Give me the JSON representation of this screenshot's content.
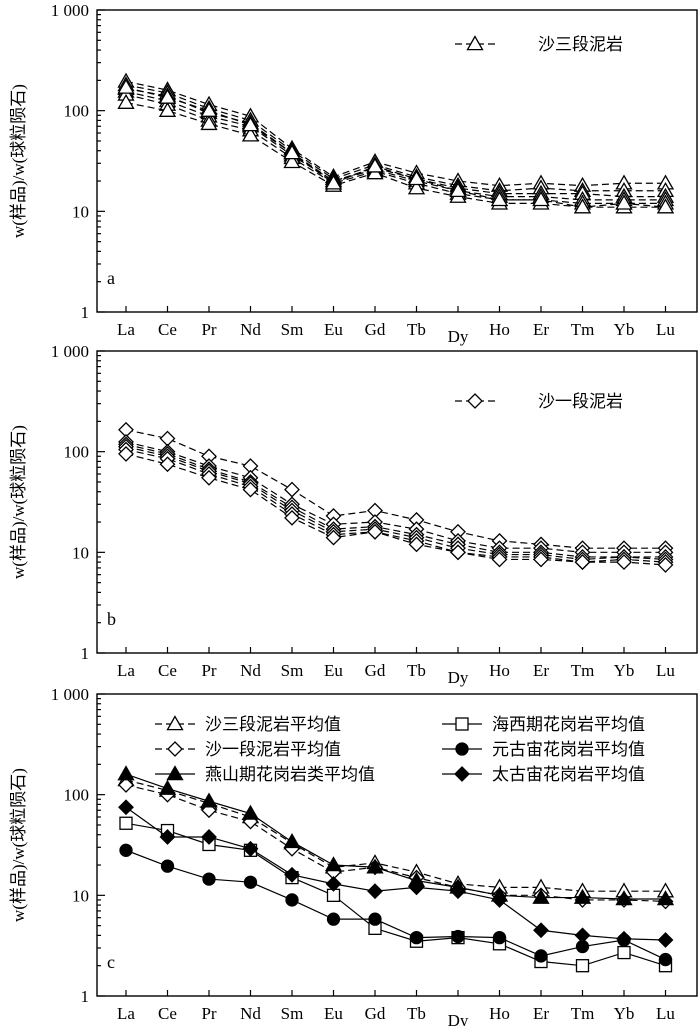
{
  "chart_data": [
    {
      "type": "line",
      "panel_label": "a",
      "ylabel": "w(样品)/w(球粒陨石)",
      "yscale": "log",
      "ylim": [
        1,
        1000
      ],
      "yticks": [
        1,
        10,
        100,
        1000
      ],
      "ytick_labels": [
        "1",
        "10",
        "100",
        "1 000"
      ],
      "categories": [
        "La",
        "Ce",
        "Pr",
        "Nd",
        "Sm",
        "Eu",
        "Gd",
        "Tb",
        "Dy",
        "Ho",
        "Er",
        "Tm",
        "Yb",
        "Lu"
      ],
      "legend": [
        {
          "label": "沙三段泥岩",
          "marker": "triangle-open",
          "line": "dashed"
        }
      ],
      "series": [
        {
          "name": "沙三段泥岩-1",
          "marker": "triangle-open",
          "line": "dashed",
          "values": [
            195,
            160,
            115,
            88,
            42,
            22,
            31,
            24,
            20,
            18,
            19,
            18,
            19,
            19
          ]
        },
        {
          "name": "沙三段泥岩-2",
          "marker": "triangle-open",
          "line": "dashed",
          "values": [
            180,
            150,
            105,
            80,
            40,
            21,
            29,
            22,
            18,
            16,
            17,
            16,
            16,
            16
          ]
        },
        {
          "name": "沙三段泥岩-3",
          "marker": "triangle-open",
          "line": "dashed",
          "values": [
            165,
            140,
            95,
            75,
            38,
            20,
            27,
            21,
            17,
            15,
            15,
            15,
            14,
            14
          ]
        },
        {
          "name": "沙三段泥岩-4",
          "marker": "triangle-open",
          "line": "dashed",
          "values": [
            155,
            125,
            88,
            70,
            36,
            20,
            26,
            20,
            16,
            14,
            14,
            13,
            13,
            13
          ]
        },
        {
          "name": "沙三段泥岩-5",
          "marker": "triangle-open",
          "line": "dashed",
          "values": [
            145,
            115,
            80,
            64,
            34,
            19,
            25,
            19,
            15,
            13,
            13,
            12,
            12,
            12
          ]
        },
        {
          "name": "沙三段泥岩-6",
          "marker": "triangle-open",
          "line": "dashed",
          "values": [
            120,
            100,
            74,
            57,
            31,
            18,
            24,
            17,
            14,
            12,
            12,
            11,
            11,
            11
          ]
        },
        {
          "name": "沙三段泥岩-7",
          "marker": "triangle-open",
          "line": "dashed",
          "values": [
            170,
            135,
            100,
            72,
            38,
            19,
            28,
            21,
            16,
            13,
            13,
            11,
            12,
            11
          ]
        }
      ]
    },
    {
      "type": "line",
      "panel_label": "b",
      "ylabel": "w(样品)/w(球粒陨石)",
      "yscale": "log",
      "ylim": [
        1,
        1000
      ],
      "yticks": [
        1,
        10,
        100,
        1000
      ],
      "ytick_labels": [
        "1",
        "10",
        "100",
        "1 000"
      ],
      "categories": [
        "La",
        "Ce",
        "Pr",
        "Nd",
        "Sm",
        "Eu",
        "Gd",
        "Tb",
        "Dy",
        "Ho",
        "Er",
        "Tm",
        "Yb",
        "Lu"
      ],
      "legend": [
        {
          "label": "沙一段泥岩",
          "marker": "diamond-open",
          "line": "dashed"
        }
      ],
      "series": [
        {
          "name": "沙一段泥岩-1",
          "marker": "diamond-open",
          "line": "dashed",
          "values": [
            165,
            135,
            90,
            72,
            42,
            23,
            26,
            21,
            16,
            13,
            12,
            11,
            11,
            11
          ]
        },
        {
          "name": "沙一段泥岩-2",
          "marker": "diamond-open",
          "line": "dashed",
          "values": [
            125,
            100,
            72,
            55,
            30,
            19,
            20,
            17,
            13,
            11,
            11,
            10,
            10,
            10
          ]
        },
        {
          "name": "沙一段泥岩-3",
          "marker": "diamond-open",
          "line": "dashed",
          "values": [
            118,
            95,
            67,
            50,
            28,
            17,
            18,
            15,
            12,
            10,
            10,
            9,
            9,
            9
          ]
        },
        {
          "name": "沙一段泥岩-4",
          "marker": "diamond-open",
          "line": "dashed",
          "values": [
            112,
            90,
            64,
            48,
            26,
            16,
            17,
            14,
            11,
            9.5,
            9.5,
            8.5,
            9,
            8.5
          ]
        },
        {
          "name": "沙一段泥岩-5",
          "marker": "diamond-open",
          "line": "dashed",
          "values": [
            105,
            85,
            60,
            45,
            24,
            15,
            16,
            13,
            10,
            9,
            9,
            8,
            8.5,
            8
          ]
        },
        {
          "name": "沙一段泥岩-6",
          "marker": "diamond-open",
          "line": "dashed",
          "values": [
            95,
            75,
            55,
            42,
            22,
            14,
            16,
            12,
            10,
            8.5,
            8.5,
            8,
            8,
            7.5
          ]
        }
      ]
    },
    {
      "type": "line",
      "panel_label": "c",
      "ylabel": "w(样品)/w(球粒陨石)",
      "yscale": "log",
      "ylim": [
        1,
        1000
      ],
      "yticks": [
        1,
        10,
        100,
        1000
      ],
      "ytick_labels": [
        "1",
        "10",
        "100",
        "1 000"
      ],
      "categories": [
        "La",
        "Ce",
        "Pr",
        "Nd",
        "Sm",
        "Eu",
        "Gd",
        "Tb",
        "Dy",
        "Ho",
        "Er",
        "Tm",
        "Yb",
        "Lu"
      ],
      "legend": [
        {
          "label": "沙三段泥岩平均值",
          "marker": "triangle-open",
          "line": "dashed"
        },
        {
          "label": "沙一段泥岩平均值",
          "marker": "diamond-open",
          "line": "dashed"
        },
        {
          "label": "燕山期花岗岩类平均值",
          "marker": "triangle-filled",
          "line": "solid"
        },
        {
          "label": "海西期花岗岩平均值",
          "marker": "square-open",
          "line": "solid"
        },
        {
          "label": "元古宙花岗岩平均值",
          "marker": "circle-filled",
          "line": "solid"
        },
        {
          "label": "太古宙花岗岩平均值",
          "marker": "diamond-filled",
          "line": "solid"
        }
      ],
      "series": [
        {
          "name": "沙三段泥岩平均值",
          "marker": "triangle-open",
          "line": "dashed",
          "values": [
            140,
            110,
            82,
            60,
            33,
            19,
            21,
            17,
            13,
            12,
            12,
            11,
            11,
            11
          ]
        },
        {
          "name": "沙一段泥岩平均值",
          "marker": "diamond-open",
          "line": "dashed",
          "values": [
            125,
            100,
            70,
            54,
            29,
            17,
            19,
            15,
            12,
            10,
            10,
            9,
            9,
            8.7
          ]
        },
        {
          "name": "燕山期花岗岩类平均值",
          "marker": "triangle-filled",
          "line": "solid",
          "values": [
            160,
            115,
            86,
            65,
            34,
            20,
            19,
            14,
            12,
            10,
            9.5,
            9.5,
            9.2,
            9.2
          ]
        },
        {
          "name": "海西期花岗岩平均值",
          "marker": "square-open",
          "line": "solid",
          "values": [
            52,
            44,
            32,
            28,
            15,
            10,
            4.7,
            3.5,
            3.8,
            3.3,
            2.2,
            2.0,
            2.7,
            2.0
          ]
        },
        {
          "name": "元古宙花岗岩平均值",
          "marker": "circle-filled",
          "line": "solid",
          "values": [
            28,
            19.5,
            14.5,
            13.5,
            9,
            5.8,
            5.8,
            3.8,
            3.9,
            3.8,
            2.5,
            3.1,
            3.6,
            2.3
          ]
        },
        {
          "name": "太古宙花岗岩平均值",
          "marker": "diamond-filled",
          "line": "solid",
          "values": [
            75,
            38,
            38,
            29,
            16,
            13,
            11,
            12,
            11,
            9,
            4.5,
            4.0,
            3.7,
            3.6
          ]
        }
      ]
    }
  ]
}
